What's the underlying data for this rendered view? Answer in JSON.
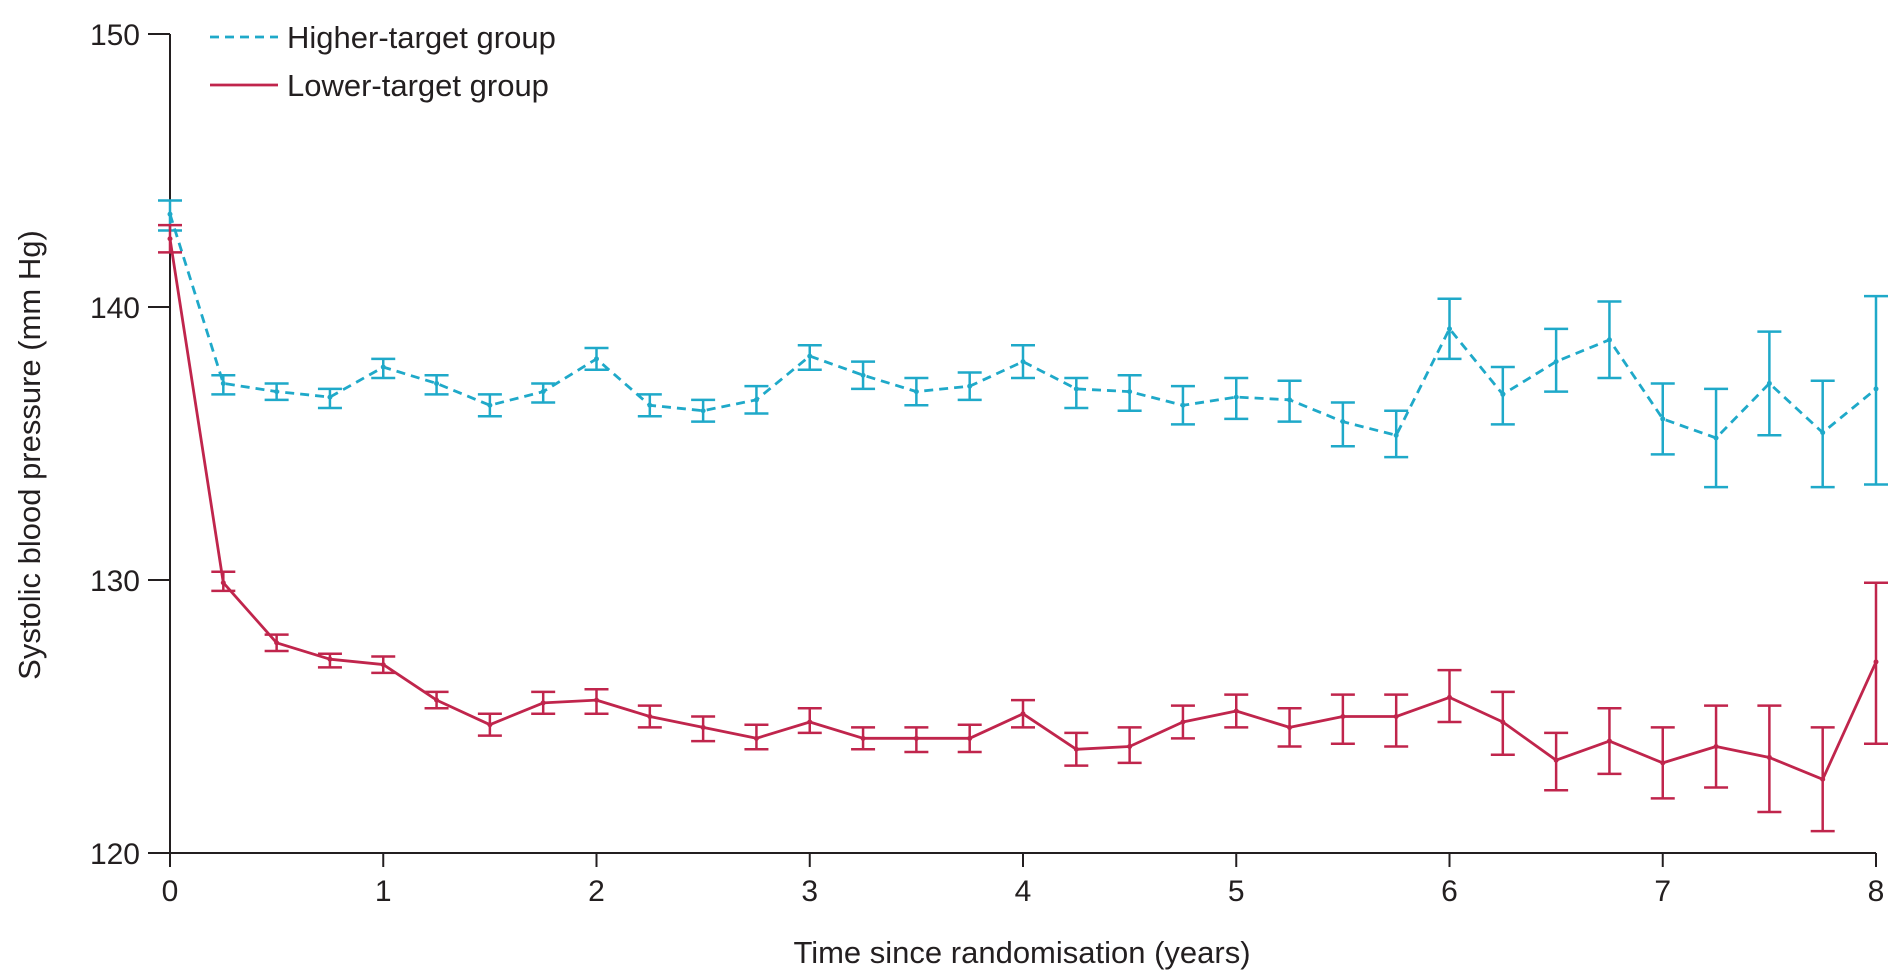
{
  "chart_data": {
    "type": "line",
    "title": "",
    "xlabel": "Time since randomisation (years)",
    "ylabel": "Systolic blood pressure (mm Hg)",
    "xlim": [
      0,
      8
    ],
    "ylim": [
      120,
      150
    ],
    "xticks": [
      "0",
      "1",
      "2",
      "3",
      "4",
      "5",
      "6",
      "7",
      "8"
    ],
    "yticks": [
      "120",
      "130",
      "140",
      "150"
    ],
    "grid": false,
    "legend_position": "top-left",
    "x": [
      0,
      0.25,
      0.5,
      0.75,
      1,
      1.25,
      1.5,
      1.75,
      2,
      2.25,
      2.5,
      2.75,
      3,
      3.25,
      3.5,
      3.75,
      4,
      4.25,
      4.5,
      4.75,
      5,
      5.25,
      5.5,
      5.75,
      6,
      6.25,
      6.5,
      6.75,
      7,
      7.25,
      7.5,
      7.75,
      8
    ],
    "series": [
      {
        "name": "Higher-target group",
        "color": "#1fa9c9",
        "line_style": "dashed",
        "values": [
          143.4,
          137.2,
          136.9,
          136.7,
          137.8,
          137.2,
          136.4,
          136.9,
          138.1,
          136.4,
          136.2,
          136.6,
          138.2,
          137.5,
          136.9,
          137.1,
          138.0,
          137.0,
          136.9,
          136.4,
          136.7,
          136.6,
          135.8,
          135.3,
          139.2,
          136.8,
          138.0,
          138.8,
          135.9,
          135.2,
          137.2,
          135.4,
          137.0
        ],
        "error_low": [
          142.8,
          136.8,
          136.6,
          136.3,
          137.4,
          136.8,
          136.0,
          136.5,
          137.7,
          136.0,
          135.8,
          136.1,
          137.7,
          137.0,
          136.4,
          136.6,
          137.4,
          136.3,
          136.2,
          135.7,
          135.9,
          135.8,
          134.9,
          134.5,
          138.1,
          135.7,
          136.9,
          137.4,
          134.6,
          133.4,
          135.3,
          133.4,
          133.5
        ],
        "error_high": [
          143.9,
          137.5,
          137.2,
          137.0,
          138.1,
          137.5,
          136.8,
          137.2,
          138.5,
          136.8,
          136.6,
          137.1,
          138.6,
          138.0,
          137.4,
          137.6,
          138.6,
          137.4,
          137.5,
          137.1,
          137.4,
          137.3,
          136.5,
          136.2,
          140.3,
          137.8,
          139.2,
          140.2,
          137.2,
          137.0,
          139.1,
          137.3,
          140.4
        ]
      },
      {
        "name": "Lower-target group",
        "color": "#c0254c",
        "line_style": "solid",
        "values": [
          142.5,
          129.9,
          127.7,
          127.1,
          126.9,
          125.6,
          124.7,
          125.5,
          125.6,
          125.0,
          124.6,
          124.2,
          124.8,
          124.2,
          124.2,
          124.2,
          125.1,
          123.8,
          123.9,
          124.8,
          125.2,
          124.6,
          125.0,
          125.0,
          125.7,
          124.8,
          123.4,
          124.1,
          123.3,
          123.9,
          123.5,
          122.7,
          127.0
        ],
        "error_low": [
          142.0,
          129.6,
          127.4,
          126.8,
          126.6,
          125.3,
          124.3,
          125.1,
          125.1,
          124.6,
          124.1,
          123.8,
          124.4,
          123.8,
          123.7,
          123.7,
          124.6,
          123.2,
          123.3,
          124.2,
          124.6,
          123.9,
          124.0,
          123.9,
          124.8,
          123.6,
          122.3,
          122.9,
          122.0,
          122.4,
          121.5,
          120.8,
          124.0
        ],
        "error_high": [
          143.0,
          130.3,
          128.0,
          127.3,
          127.2,
          125.9,
          125.1,
          125.9,
          126.0,
          125.4,
          125.0,
          124.7,
          125.3,
          124.6,
          124.6,
          124.7,
          125.6,
          124.4,
          124.6,
          125.4,
          125.8,
          125.3,
          125.8,
          125.8,
          126.7,
          125.9,
          124.4,
          125.3,
          124.6,
          125.4,
          125.4,
          124.6,
          129.9
        ]
      }
    ]
  }
}
